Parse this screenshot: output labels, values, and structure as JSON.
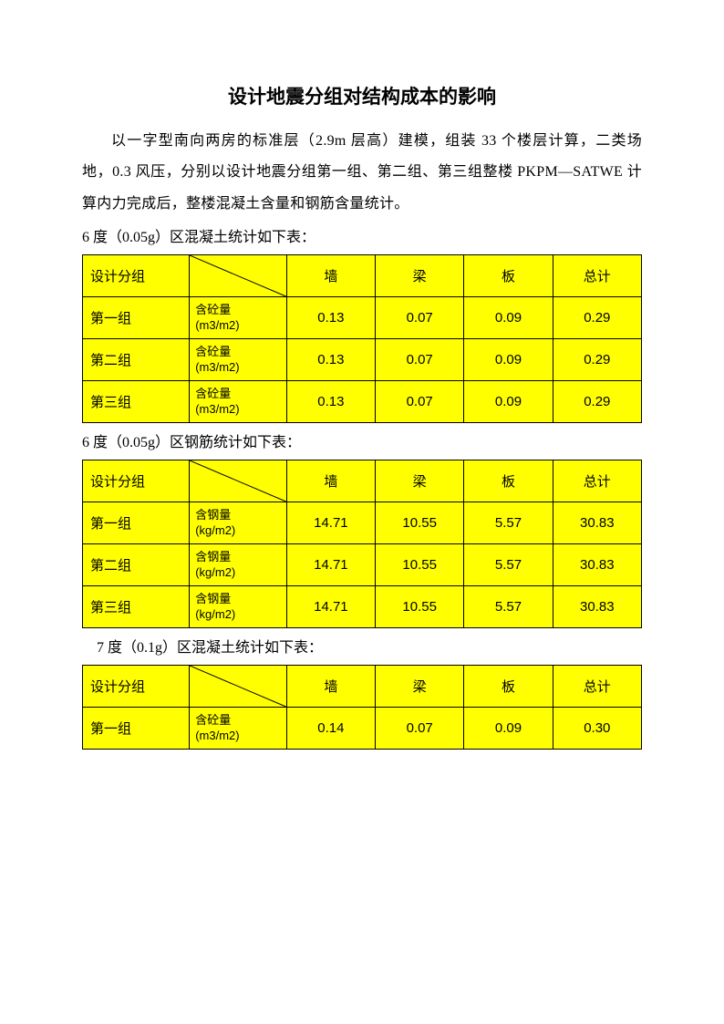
{
  "title": "设计地震分组对结构成本的影响",
  "paragraph": "以一字型南向两房的标准层（2.9m 层高）建模，组装 33 个楼层计算，二类场地，0.3 风压，分别以设计地震分组第一组、第二组、第三组整楼 PKPM—SATWE 计算内力完成后，整楼混凝土含量和钢筋含量统计。",
  "headers": {
    "group": "设计分组",
    "wall": "墙",
    "beam": "梁",
    "slab": "板",
    "total": "总计"
  },
  "metrics": {
    "concrete": "含砼量<br>(m3/m2)",
    "steel": "含钢量<br>(kg/m2)"
  },
  "groups": {
    "g1": "第一组",
    "g2": "第二组",
    "g3": "第三组"
  },
  "tables": [
    {
      "caption": "6 度（0.05g）区混凝土统计如下表：",
      "caption_indent": false,
      "metric_key": "concrete",
      "rows": [
        {
          "group": "g1",
          "wall": "0.13",
          "beam": "0.07",
          "slab": "0.09",
          "total": "0.29"
        },
        {
          "group": "g2",
          "wall": "0.13",
          "beam": "0.07",
          "slab": "0.09",
          "total": "0.29"
        },
        {
          "group": "g3",
          "wall": "0.13",
          "beam": "0.07",
          "slab": "0.09",
          "total": "0.29"
        }
      ]
    },
    {
      "caption": "6 度（0.05g）区钢筋统计如下表：",
      "caption_indent": false,
      "metric_key": "steel",
      "rows": [
        {
          "group": "g1",
          "wall": "14.71",
          "beam": "10.55",
          "slab": "5.57",
          "total": "30.83"
        },
        {
          "group": "g2",
          "wall": "14.71",
          "beam": "10.55",
          "slab": "5.57",
          "total": "30.83"
        },
        {
          "group": "g3",
          "wall": "14.71",
          "beam": "10.55",
          "slab": "5.57",
          "total": "30.83"
        }
      ]
    },
    {
      "caption": "7 度（0.1g）区混凝土统计如下表：",
      "caption_indent": true,
      "metric_key": "concrete",
      "rows": [
        {
          "group": "g1",
          "wall": "0.14",
          "beam": "0.07",
          "slab": "0.09",
          "total": "0.30"
        }
      ]
    }
  ],
  "style": {
    "highlight_bg": "#ffff00",
    "border_color": "#000000",
    "diag_stroke": "#000000"
  }
}
